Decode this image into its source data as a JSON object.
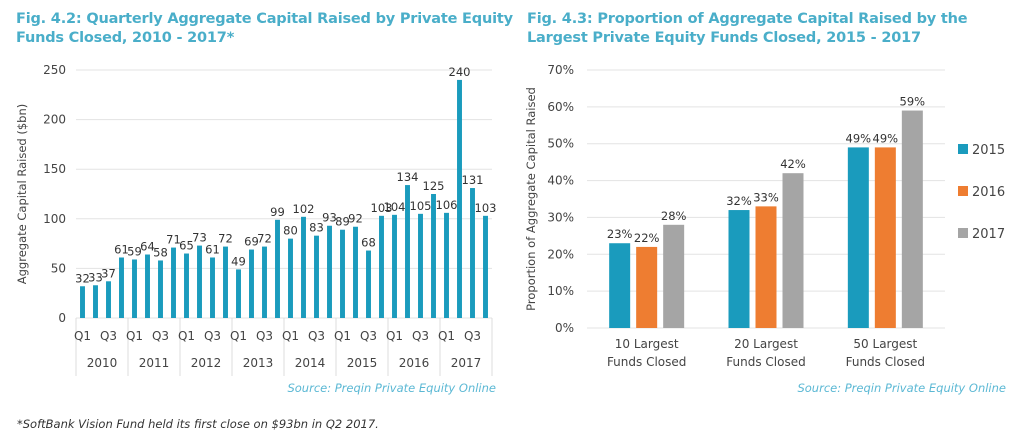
{
  "colors": {
    "title": "#4aaec9",
    "bar_primary": "#1a9bbd",
    "series_2015": "#1a9bbd",
    "series_2016": "#ee7d31",
    "series_2017": "#a5a5a5",
    "source": "#5bb8d4",
    "grid": "#e3e3e3"
  },
  "footnote": "*SoftBank Vision Fund held its first close on $93bn in Q2 2017.",
  "chart_data": [
    {
      "type": "bar",
      "title": "Fig. 4.2: Quarterly Aggregate Capital Raised by Private Equity Funds Closed, 2010 - 2017*",
      "xlabel": "",
      "ylabel": "Aggregate Capital Raised ($bn)",
      "ylim": [
        0,
        250
      ],
      "yticks": [
        0,
        50,
        100,
        150,
        200,
        250
      ],
      "grid": true,
      "source": "Source: Preqin Private Equity Online",
      "years": [
        "2010",
        "2011",
        "2012",
        "2013",
        "2014",
        "2015",
        "2016",
        "2017"
      ],
      "quarter_tick_labels": [
        "Q1",
        "Q3"
      ],
      "categories": [
        "2010 Q1",
        "2010 Q2",
        "2010 Q3",
        "2010 Q4",
        "2011 Q1",
        "2011 Q2",
        "2011 Q3",
        "2011 Q4",
        "2012 Q1",
        "2012 Q2",
        "2012 Q3",
        "2012 Q4",
        "2013 Q1",
        "2013 Q2",
        "2013 Q3",
        "2013 Q4",
        "2014 Q1",
        "2014 Q2",
        "2014 Q3",
        "2014 Q4",
        "2015 Q1",
        "2015 Q2",
        "2015 Q3",
        "2015 Q4",
        "2016 Q1",
        "2016 Q2",
        "2016 Q3",
        "2016 Q4",
        "2017 Q1",
        "2017 Q2",
        "2017 Q3",
        "2017 Q4"
      ],
      "values": [
        32,
        33,
        37,
        61,
        59,
        64,
        58,
        71,
        65,
        73,
        61,
        72,
        49,
        69,
        72,
        99,
        80,
        102,
        83,
        93,
        89,
        92,
        68,
        103,
        104,
        134,
        105,
        125,
        106,
        240,
        131,
        103
      ]
    },
    {
      "type": "bar",
      "title": "Fig. 4.3: Proportion of Aggregate Capital Raised by the Largest Private Equity Funds Closed, 2015 - 2017",
      "xlabel": "",
      "ylabel": "Proportion of Aggregate Capital Raised",
      "ylim": [
        0,
        70
      ],
      "yticks": [
        0,
        10,
        20,
        30,
        40,
        50,
        60,
        70
      ],
      "ytick_suffix": "%",
      "grid": true,
      "legend": "right",
      "source": "Source: Preqin Private Equity Online",
      "categories": [
        [
          "10 Largest",
          "Funds Closed"
        ],
        [
          "20 Largest",
          "Funds Closed"
        ],
        [
          "50 Largest",
          "Funds Closed"
        ]
      ],
      "series": [
        {
          "name": "2015",
          "values": [
            23,
            32,
            49
          ]
        },
        {
          "name": "2016",
          "values": [
            22,
            33,
            49
          ]
        },
        {
          "name": "2017",
          "values": [
            28,
            42,
            59
          ]
        }
      ]
    }
  ]
}
